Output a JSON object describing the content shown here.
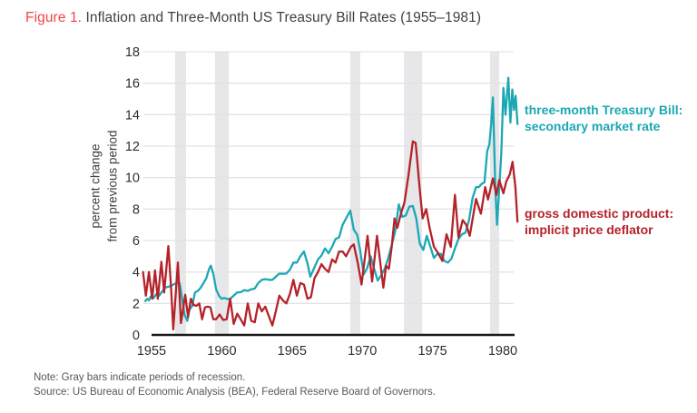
{
  "header": {
    "figure_label": "Figure 1.",
    "title": " Inflation and Three-Month US Treasury Bill Rates (1955–1981)"
  },
  "y_axis": {
    "label_line1": "percent change",
    "label_line2": "from previous period"
  },
  "footer": {
    "note": "Note: Gray bars indicate periods of recession.",
    "source": "Source: US Bureau of Economic Analysis (BEA), Federal Reserve Board of Governors."
  },
  "chart_data": {
    "type": "line",
    "title": "Inflation and Three-Month US Treasury Bill Rates (1955–1981)",
    "xlabel": "",
    "ylabel": "percent change from previous period",
    "x_ticks": [
      1955,
      1960,
      1965,
      1970,
      1975,
      1980
    ],
    "y_ticks": [
      0,
      2,
      4,
      6,
      8,
      10,
      12,
      14,
      16,
      18
    ],
    "xlim": [
      1954.8,
      1982.2
    ],
    "ylim": [
      0,
      18
    ],
    "grid": "horizontal",
    "legend_position": "right",
    "recession_bands_years": [
      [
        1957.58,
        1958.36
      ],
      [
        1960.42,
        1961.4
      ],
      [
        1970.05,
        1970.76
      ],
      [
        1973.87,
        1975.16
      ],
      [
        1980.0,
        1980.65
      ]
    ],
    "colors": {
      "recession_band": "#e7e7e9",
      "gridline": "#e3e3e5",
      "axis": "#1a1a1a",
      "tick_label": "#2e2e30"
    },
    "series": [
      {
        "name": "three-month Treasury Bill: secondary market rate",
        "legend_line1": "three-month Treasury Bill:",
        "legend_line2": "secondary market rate",
        "color": "#1BA8B4",
        "points": [
          [
            1955.45,
            2.15
          ],
          [
            1955.6,
            2.3
          ],
          [
            1955.72,
            2.2
          ],
          [
            1955.85,
            2.45
          ],
          [
            1956.05,
            2.35
          ],
          [
            1956.25,
            2.6
          ],
          [
            1956.45,
            2.5
          ],
          [
            1956.65,
            2.75
          ],
          [
            1956.85,
            3.0
          ],
          [
            1957.05,
            3.05
          ],
          [
            1957.25,
            3.1
          ],
          [
            1957.45,
            3.2
          ],
          [
            1957.7,
            3.3
          ],
          [
            1957.9,
            3.3
          ],
          [
            1958.1,
            2.2
          ],
          [
            1958.25,
            1.3
          ],
          [
            1958.45,
            0.9
          ],
          [
            1958.6,
            1.6
          ],
          [
            1958.8,
            1.85
          ],
          [
            1959.0,
            2.7
          ],
          [
            1959.2,
            2.8
          ],
          [
            1959.4,
            3.0
          ],
          [
            1959.6,
            3.3
          ],
          [
            1959.8,
            3.6
          ],
          [
            1960.0,
            4.2
          ],
          [
            1960.12,
            4.4
          ],
          [
            1960.3,
            3.9
          ],
          [
            1960.5,
            2.9
          ],
          [
            1960.7,
            2.5
          ],
          [
            1960.9,
            2.3
          ],
          [
            1961.1,
            2.35
          ],
          [
            1961.3,
            2.28
          ],
          [
            1961.5,
            2.3
          ],
          [
            1961.75,
            2.5
          ],
          [
            1962.0,
            2.7
          ],
          [
            1962.25,
            2.72
          ],
          [
            1962.5,
            2.85
          ],
          [
            1962.75,
            2.8
          ],
          [
            1963.0,
            2.9
          ],
          [
            1963.25,
            2.95
          ],
          [
            1963.5,
            3.3
          ],
          [
            1963.75,
            3.5
          ],
          [
            1964.0,
            3.55
          ],
          [
            1964.25,
            3.5
          ],
          [
            1964.5,
            3.5
          ],
          [
            1964.75,
            3.7
          ],
          [
            1965.0,
            3.9
          ],
          [
            1965.25,
            3.88
          ],
          [
            1965.5,
            3.9
          ],
          [
            1965.75,
            4.15
          ],
          [
            1966.0,
            4.6
          ],
          [
            1966.25,
            4.6
          ],
          [
            1966.5,
            5.0
          ],
          [
            1966.75,
            5.3
          ],
          [
            1967.0,
            4.55
          ],
          [
            1967.2,
            3.7
          ],
          [
            1967.5,
            4.3
          ],
          [
            1967.75,
            4.8
          ],
          [
            1968.0,
            5.05
          ],
          [
            1968.25,
            5.5
          ],
          [
            1968.5,
            5.2
          ],
          [
            1968.75,
            5.6
          ],
          [
            1969.0,
            6.1
          ],
          [
            1969.25,
            6.2
          ],
          [
            1969.5,
            7.0
          ],
          [
            1969.75,
            7.4
          ],
          [
            1970.05,
            7.9
          ],
          [
            1970.3,
            6.7
          ],
          [
            1970.55,
            6.35
          ],
          [
            1970.75,
            5.4
          ],
          [
            1971.0,
            3.85
          ],
          [
            1971.25,
            4.25
          ],
          [
            1971.5,
            5.0
          ],
          [
            1971.75,
            4.2
          ],
          [
            1972.0,
            3.45
          ],
          [
            1972.25,
            3.8
          ],
          [
            1972.5,
            4.2
          ],
          [
            1972.75,
            4.9
          ],
          [
            1973.0,
            5.7
          ],
          [
            1973.25,
            6.6
          ],
          [
            1973.5,
            8.3
          ],
          [
            1973.75,
            7.5
          ],
          [
            1974.0,
            7.6
          ],
          [
            1974.25,
            8.15
          ],
          [
            1974.5,
            8.2
          ],
          [
            1974.75,
            7.4
          ],
          [
            1975.0,
            5.8
          ],
          [
            1975.25,
            5.4
          ],
          [
            1975.5,
            6.3
          ],
          [
            1975.75,
            5.6
          ],
          [
            1976.0,
            4.9
          ],
          [
            1976.25,
            5.15
          ],
          [
            1976.5,
            5.15
          ],
          [
            1976.75,
            4.7
          ],
          [
            1977.0,
            4.6
          ],
          [
            1977.25,
            4.85
          ],
          [
            1977.5,
            5.5
          ],
          [
            1977.75,
            6.1
          ],
          [
            1978.0,
            6.4
          ],
          [
            1978.25,
            6.5
          ],
          [
            1978.5,
            7.3
          ],
          [
            1978.75,
            8.7
          ],
          [
            1979.0,
            9.4
          ],
          [
            1979.2,
            9.4
          ],
          [
            1979.4,
            9.6
          ],
          [
            1979.6,
            9.7
          ],
          [
            1979.8,
            11.7
          ],
          [
            1979.95,
            12.1
          ],
          [
            1980.08,
            13.4
          ],
          [
            1980.2,
            15.1
          ],
          [
            1980.38,
            9.2
          ],
          [
            1980.5,
            7.0
          ],
          [
            1980.65,
            9.3
          ],
          [
            1980.8,
            11.6
          ],
          [
            1980.95,
            15.7
          ],
          [
            1981.1,
            14.0
          ],
          [
            1981.3,
            16.35
          ],
          [
            1981.45,
            13.5
          ],
          [
            1981.58,
            15.6
          ],
          [
            1981.7,
            14.3
          ],
          [
            1981.82,
            15.2
          ],
          [
            1981.95,
            13.4
          ]
        ]
      },
      {
        "name": "gross domestic product: implicit price deflator",
        "legend_line1": "gross domestic product:",
        "legend_line2": "implicit price deflator",
        "color": "#B4222A",
        "points": [
          [
            1955.3,
            4.0
          ],
          [
            1955.5,
            2.5
          ],
          [
            1955.72,
            4.0
          ],
          [
            1955.95,
            2.3
          ],
          [
            1956.15,
            4.1
          ],
          [
            1956.35,
            2.3
          ],
          [
            1956.6,
            4.65
          ],
          [
            1956.8,
            2.7
          ],
          [
            1957.1,
            5.65
          ],
          [
            1957.3,
            2.9
          ],
          [
            1957.45,
            0.35
          ],
          [
            1957.78,
            4.6
          ],
          [
            1958.0,
            0.75
          ],
          [
            1958.3,
            2.55
          ],
          [
            1958.5,
            1.15
          ],
          [
            1958.7,
            2.3
          ],
          [
            1958.9,
            1.9
          ],
          [
            1959.1,
            1.85
          ],
          [
            1959.3,
            2.0
          ],
          [
            1959.5,
            1.0
          ],
          [
            1959.7,
            1.75
          ],
          [
            1959.9,
            1.8
          ],
          [
            1960.1,
            1.75
          ],
          [
            1960.3,
            1.0
          ],
          [
            1960.5,
            1.0
          ],
          [
            1960.75,
            1.3
          ],
          [
            1961.0,
            0.95
          ],
          [
            1961.25,
            1.0
          ],
          [
            1961.5,
            2.3
          ],
          [
            1961.75,
            0.7
          ],
          [
            1962.0,
            1.35
          ],
          [
            1962.25,
            1.0
          ],
          [
            1962.5,
            0.6
          ],
          [
            1962.75,
            2.0
          ],
          [
            1963.0,
            0.9
          ],
          [
            1963.25,
            0.8
          ],
          [
            1963.5,
            2.0
          ],
          [
            1963.75,
            1.5
          ],
          [
            1964.0,
            1.8
          ],
          [
            1964.25,
            1.2
          ],
          [
            1964.5,
            0.6
          ],
          [
            1964.75,
            1.5
          ],
          [
            1965.0,
            2.5
          ],
          [
            1965.25,
            2.2
          ],
          [
            1965.5,
            2.0
          ],
          [
            1965.75,
            2.6
          ],
          [
            1966.0,
            3.5
          ],
          [
            1966.25,
            2.5
          ],
          [
            1966.5,
            3.3
          ],
          [
            1966.75,
            3.2
          ],
          [
            1967.0,
            2.3
          ],
          [
            1967.25,
            2.4
          ],
          [
            1967.5,
            3.6
          ],
          [
            1967.75,
            4.0
          ],
          [
            1968.0,
            4.5
          ],
          [
            1968.25,
            4.2
          ],
          [
            1968.5,
            4.0
          ],
          [
            1968.75,
            4.8
          ],
          [
            1969.0,
            4.6
          ],
          [
            1969.25,
            5.3
          ],
          [
            1969.5,
            5.3
          ],
          [
            1969.75,
            5.0
          ],
          [
            1970.1,
            5.6
          ],
          [
            1970.3,
            5.75
          ],
          [
            1970.6,
            4.5
          ],
          [
            1970.85,
            3.2
          ],
          [
            1971.28,
            6.3
          ],
          [
            1971.6,
            3.4
          ],
          [
            1971.95,
            6.3
          ],
          [
            1972.4,
            3.0
          ],
          [
            1972.6,
            4.4
          ],
          [
            1972.8,
            4.2
          ],
          [
            1973.0,
            5.6
          ],
          [
            1973.2,
            7.4
          ],
          [
            1973.4,
            6.8
          ],
          [
            1973.65,
            7.7
          ],
          [
            1973.9,
            8.4
          ],
          [
            1974.2,
            10.2
          ],
          [
            1974.5,
            12.3
          ],
          [
            1974.7,
            12.2
          ],
          [
            1975.0,
            9.2
          ],
          [
            1975.2,
            7.4
          ],
          [
            1975.45,
            8.0
          ],
          [
            1975.7,
            6.8
          ],
          [
            1976.0,
            5.6
          ],
          [
            1976.3,
            5.2
          ],
          [
            1976.6,
            4.7
          ],
          [
            1976.9,
            6.4
          ],
          [
            1977.2,
            5.6
          ],
          [
            1977.5,
            8.9
          ],
          [
            1977.75,
            6.2
          ],
          [
            1978.05,
            7.3
          ],
          [
            1978.3,
            7.0
          ],
          [
            1978.55,
            6.3
          ],
          [
            1979.0,
            8.65
          ],
          [
            1979.35,
            7.7
          ],
          [
            1979.65,
            9.4
          ],
          [
            1979.85,
            8.6
          ],
          [
            1980.2,
            9.95
          ],
          [
            1980.45,
            8.9
          ],
          [
            1980.65,
            9.85
          ],
          [
            1980.95,
            9.0
          ],
          [
            1981.15,
            9.75
          ],
          [
            1981.4,
            10.2
          ],
          [
            1981.6,
            11.0
          ],
          [
            1981.8,
            9.4
          ],
          [
            1981.95,
            7.2
          ]
        ]
      }
    ]
  }
}
